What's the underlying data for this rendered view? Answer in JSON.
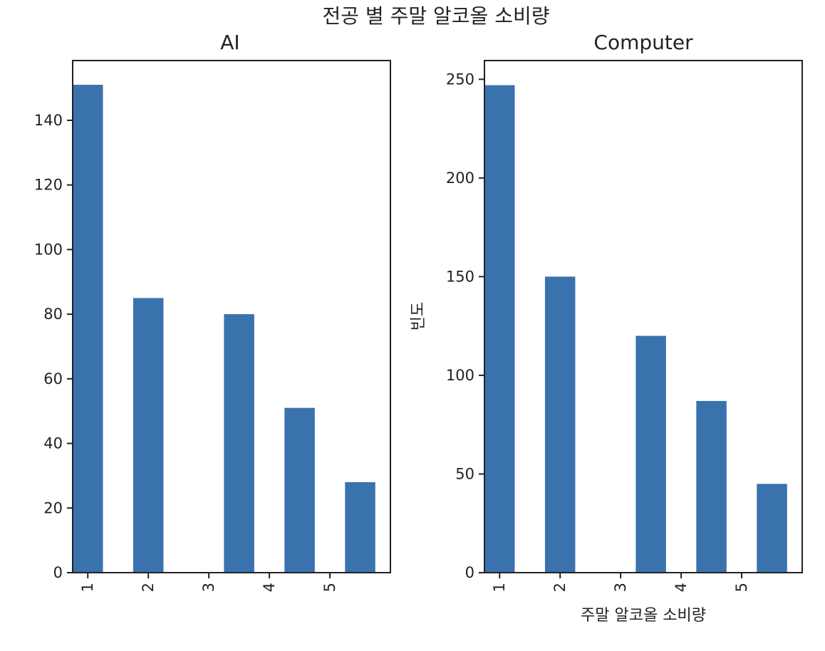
{
  "figure": {
    "suptitle": "전공 별 주말 알코올 소비량"
  },
  "colors": {
    "bar": "#3a72ad",
    "axis": "#222222",
    "background": "#ffffff"
  },
  "chart_data": [
    {
      "type": "bar",
      "title": "AI",
      "xlabel": "",
      "ylabel": "",
      "categories": [
        "1",
        "2",
        "3",
        "4",
        "5"
      ],
      "x": [
        1,
        2,
        3.5,
        4.5,
        5.5
      ],
      "values": [
        151,
        85,
        80,
        51,
        28
      ],
      "xlim": [
        0.75,
        6
      ],
      "ylim": [
        0,
        158.5
      ],
      "yticks": [
        0,
        20,
        40,
        60,
        80,
        100,
        120,
        140
      ],
      "xticks": [
        1,
        2,
        3,
        4,
        5
      ],
      "tick_rotation": 90,
      "grid": false
    },
    {
      "type": "bar",
      "title": "Computer",
      "xlabel": "주말 알코올 소비량",
      "ylabel": "빈도",
      "categories": [
        "1",
        "2",
        "3",
        "4",
        "5"
      ],
      "x": [
        1,
        2,
        3.5,
        4.5,
        5.5
      ],
      "values": [
        247,
        150,
        120,
        87,
        45
      ],
      "xlim": [
        0.75,
        6
      ],
      "ylim": [
        0,
        259.5
      ],
      "yticks": [
        0,
        50,
        100,
        150,
        200,
        250
      ],
      "xticks": [
        1,
        2,
        3,
        4,
        5
      ],
      "tick_rotation": 90,
      "grid": false
    }
  ]
}
